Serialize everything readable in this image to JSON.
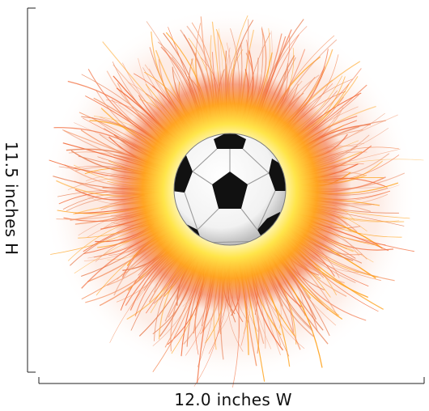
{
  "dimensions": {
    "height_label": "11.5 inches H",
    "width_label": "12.0 inches W"
  },
  "artwork": {
    "subject": "soccer-ball",
    "ball_colors": {
      "panel_dark": "#111111",
      "panel_light": "#ffffff"
    },
    "glow_colors": {
      "core": "#fffbe0",
      "inner": "#ffe54a",
      "mid": "#ffa21c",
      "outer": "#f26a3a"
    },
    "dimension_line_color": "#222222"
  }
}
